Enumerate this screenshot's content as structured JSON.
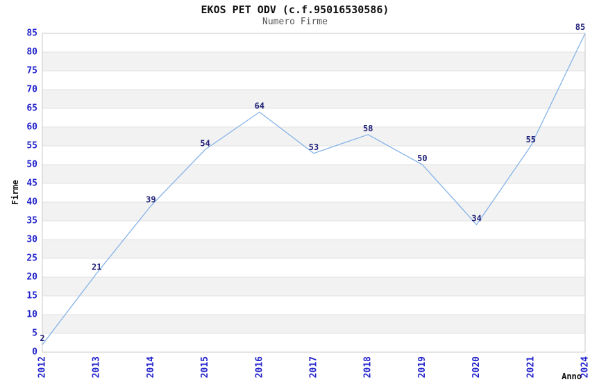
{
  "page": {
    "title": "EKOS PET ODV (c.f.95016530586)",
    "subtitle": "Numero Firme"
  },
  "chart_data": {
    "type": "line",
    "title": "EKOS PET ODV (c.f.95016530586)",
    "subtitle": "Numero Firme",
    "xlabel": "Anno",
    "ylabel": "Firme",
    "categories": [
      "2012",
      "2013",
      "2014",
      "2015",
      "2016",
      "2017",
      "2018",
      "2019",
      "2020",
      "2021",
      "2024"
    ],
    "values": [
      2,
      21,
      39,
      54,
      64,
      53,
      58,
      50,
      34,
      55,
      85
    ],
    "ylim": [
      0,
      85
    ],
    "ytick_step": 5,
    "xtick_rotation": 90,
    "grid": "horizontal-bands-alternating",
    "legend_position": "none",
    "markers": "none",
    "colors": {
      "line": "#85b3e8",
      "tick_label": "#2222cc",
      "data_label": "#1f1f77",
      "title": "#111111",
      "subtitle": "#555555",
      "axis_label": "#111111",
      "band_gray": "#f2f2f2",
      "band_white": "#ffffff",
      "gridline": "#e2e2e2",
      "border": "#c9c9c9",
      "background": "#ffffff"
    }
  }
}
